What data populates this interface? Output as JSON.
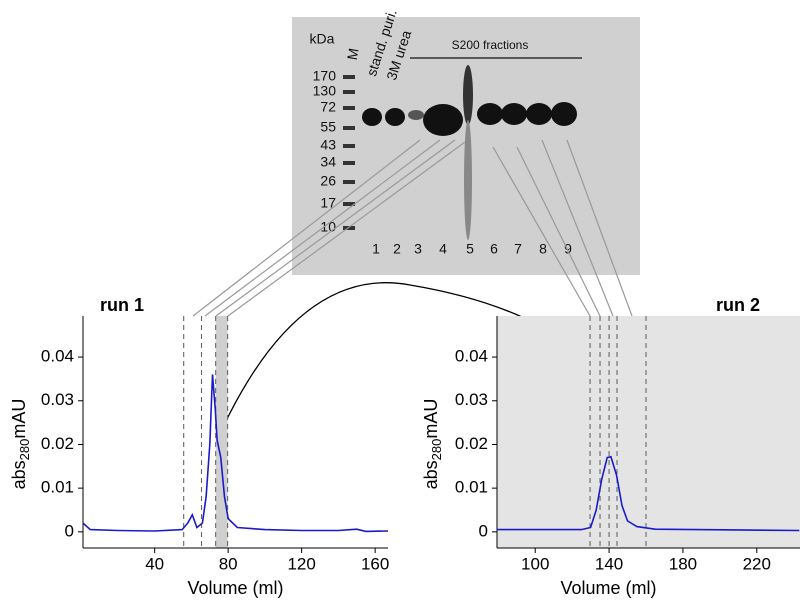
{
  "chart_data": [
    {
      "type": "line",
      "title": "run 1",
      "ylabel": {
        "text": "abs",
        "sub": "280",
        "unit": "mAU"
      },
      "xlabel": "Volume (ml)",
      "x": [
        1,
        5,
        20,
        40,
        55,
        58,
        60.5,
        63,
        66,
        68,
        70,
        71.5,
        73,
        74,
        76,
        78,
        80,
        85,
        100,
        120,
        140,
        150,
        155,
        167
      ],
      "values": [
        0.002,
        0.0005,
        0.0003,
        0.0002,
        0.0005,
        0.002,
        0.0039,
        0.001,
        0.002,
        0.008,
        0.02,
        0.036,
        0.028,
        0.021,
        0.017,
        0.008,
        0.003,
        0.001,
        0.0005,
        0.0003,
        0.0003,
        0.0006,
        0.0001,
        0.0002
      ],
      "color": "#1a1acc",
      "xlim": [
        1,
        167
      ],
      "xticks": [
        40,
        80,
        120,
        160
      ],
      "ylim": [
        -0.0037,
        0.0494
      ],
      "yticks": [
        0,
        0.01,
        0.02,
        0.03,
        0.04
      ],
      "fraction_lines": [
        55.8,
        65.5,
        73.2,
        79.7
      ],
      "shaded_range": [
        73.2,
        79.7
      ]
    },
    {
      "type": "line",
      "title": "run 2",
      "ylabel": {
        "text": "abs",
        "sub": "280",
        "unit": "mAU"
      },
      "xlabel": "Volume (ml)",
      "x": [
        79.3,
        125,
        130,
        133,
        136,
        139,
        141,
        144,
        147,
        150,
        155,
        165,
        243
      ],
      "values": [
        0.0005,
        0.0005,
        0.001,
        0.005,
        0.012,
        0.017,
        0.0172,
        0.013,
        0.006,
        0.0025,
        0.0012,
        0.0006,
        0.0003
      ],
      "color": "#1a1acc",
      "xlim": [
        79.3,
        243.4
      ],
      "xticks": [
        100,
        140,
        180,
        220
      ],
      "ylim": [
        -0.0037,
        0.0494
      ],
      "yticks": [
        0,
        0.01,
        0.02,
        0.03,
        0.04
      ],
      "fraction_lines": [
        129.7,
        135.1,
        140,
        144.3,
        160
      ],
      "plot_background": "#e4e4e4"
    }
  ],
  "gel": {
    "unit_label": "kDa",
    "marker_lane": "M",
    "lane_labels": [
      "stand. puri.",
      "3M urea"
    ],
    "group_label": "S200 fractions",
    "markers": [
      170,
      130,
      72,
      55,
      43,
      34,
      26,
      17,
      10
    ],
    "lanes": [
      1,
      2,
      3,
      4,
      5,
      6,
      7,
      8,
      9
    ]
  }
}
